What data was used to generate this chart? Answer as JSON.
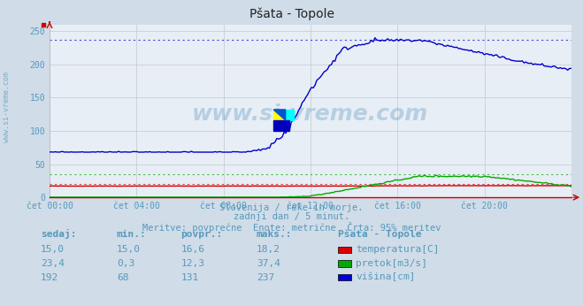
{
  "title": "Pšata - Topole",
  "bg_color": "#d0dce8",
  "plot_bg_color": "#e8eef5",
  "xlabel": "",
  "ylabel": "",
  "xlim_hours": [
    0,
    24
  ],
  "ylim": [
    0,
    260
  ],
  "yticks": [
    0,
    50,
    100,
    150,
    200,
    250
  ],
  "xtick_labels": [
    "čet 00:00",
    "čet 04:00",
    "čet 08:00",
    "čet 12:00",
    "čet 16:00",
    "čet 20:00"
  ],
  "xtick_positions": [
    0,
    4,
    8,
    12,
    16,
    20
  ],
  "subtitle1": "Slovenija / reke in morje.",
  "subtitle2": "zadnji dan / 5 minut.",
  "subtitle3": "Meritve: povprečne  Enote: metrične  Črta: 95% meritev",
  "text_color": "#5599bb",
  "watermark": "www.si-vreme.com",
  "legend_title": "Pšata - Topole",
  "legend_items": [
    {
      "label": "temperatura[C]",
      "color": "#dd0000"
    },
    {
      "label": "pretok[m3/s]",
      "color": "#00aa00"
    },
    {
      "label": "višina[cm]",
      "color": "#0000dd"
    }
  ],
  "table_headers": [
    "sedaj:",
    "min.:",
    "povpr.:",
    "maks.:"
  ],
  "table_rows": [
    [
      "15,0",
      "15,0",
      "16,6",
      "18,2"
    ],
    [
      "23,4",
      "0,3",
      "12,3",
      "37,4"
    ],
    [
      "192",
      "68",
      "131",
      "237"
    ]
  ],
  "temp_color": "#cc0000",
  "flow_color": "#00aa00",
  "height_color": "#0000cc",
  "temp_dotted_y": 18.2,
  "flow_dotted_y": 37.4,
  "height_dotted_y": 237,
  "temp_ymax": 18.2,
  "flow_ymax": 37.4,
  "height_ymax": 237,
  "plot_ymax": 260
}
